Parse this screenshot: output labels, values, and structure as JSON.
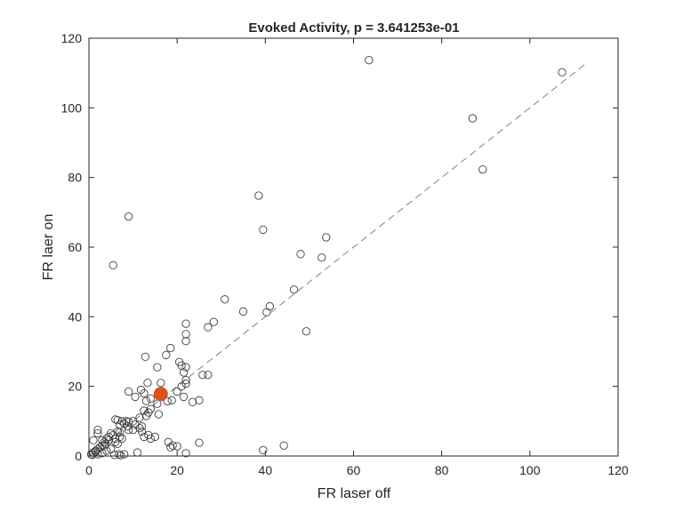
{
  "chart_data": {
    "type": "scatter",
    "title": "Evoked Activity, p = 3.641253e-01",
    "xlabel": "FR laser off",
    "ylabel": "FR laer on",
    "xlim": [
      0,
      120
    ],
    "ylim": [
      0,
      120
    ],
    "xticks": [
      "0",
      "20",
      "40",
      "60",
      "80",
      "100",
      "120"
    ],
    "yticks": [
      "0",
      "20",
      "40",
      "60",
      "80",
      "100",
      "120"
    ],
    "grid": false,
    "box": true,
    "identity_line": {
      "from": [
        0,
        0
      ],
      "to": [
        113,
        113
      ],
      "style": "dashed",
      "color": "#808080"
    },
    "colors": {
      "points": "#404040",
      "highlight": "#d95319",
      "axes": "#262626"
    },
    "highlight_point": {
      "x": 16.3,
      "y": 17.8
    },
    "points": [
      [
        63.5,
        113.7
      ],
      [
        107.3,
        110.2
      ],
      [
        87.0,
        97.0
      ],
      [
        89.3,
        82.3
      ],
      [
        38.5,
        74.8
      ],
      [
        39.5,
        65.0
      ],
      [
        53.8,
        62.8
      ],
      [
        48.0,
        58.0
      ],
      [
        52.8,
        57.0
      ],
      [
        9.0,
        68.8
      ],
      [
        5.5,
        54.8
      ],
      [
        46.5,
        47.8
      ],
      [
        30.8,
        45.0
      ],
      [
        41.0,
        43.0
      ],
      [
        40.3,
        41.3
      ],
      [
        35.0,
        41.5
      ],
      [
        49.3,
        35.8
      ],
      [
        28.3,
        38.5
      ],
      [
        27.0,
        37.0
      ],
      [
        22.0,
        38.0
      ],
      [
        22.0,
        35.0
      ],
      [
        22.0,
        33.0
      ],
      [
        18.5,
        31.0
      ],
      [
        17.5,
        29.0
      ],
      [
        12.8,
        28.5
      ],
      [
        20.5,
        27.0
      ],
      [
        21.0,
        26.0
      ],
      [
        22.0,
        25.5
      ],
      [
        15.5,
        25.5
      ],
      [
        21.5,
        24.0
      ],
      [
        25.8,
        23.3
      ],
      [
        27.0,
        23.3
      ],
      [
        22.0,
        21.8
      ],
      [
        16.3,
        21.0
      ],
      [
        22.0,
        20.8
      ],
      [
        13.3,
        21.0
      ],
      [
        21.0,
        20.0
      ],
      [
        20.0,
        18.5
      ],
      [
        11.8,
        19.0
      ],
      [
        9.0,
        18.5
      ],
      [
        12.5,
        18.0
      ],
      [
        10.5,
        17.0
      ],
      [
        14.0,
        16.5
      ],
      [
        13.0,
        15.8
      ],
      [
        21.5,
        17.0
      ],
      [
        25.0,
        16.0
      ],
      [
        23.5,
        15.5
      ],
      [
        17.8,
        15.7
      ],
      [
        18.8,
        16.0
      ],
      [
        15.5,
        15.0
      ],
      [
        14.0,
        13.5
      ],
      [
        13.5,
        12.5
      ],
      [
        12.5,
        13.0
      ],
      [
        15.8,
        12.0
      ],
      [
        13.0,
        11.5
      ],
      [
        11.5,
        11.0
      ],
      [
        10.0,
        10.0
      ],
      [
        9.0,
        9.8
      ],
      [
        8.5,
        10.0
      ],
      [
        8.0,
        9.3
      ],
      [
        7.5,
        10.0
      ],
      [
        6.5,
        10.3
      ],
      [
        6.0,
        10.5
      ],
      [
        7.0,
        9.0
      ],
      [
        8.8,
        8.5
      ],
      [
        10.5,
        9.0
      ],
      [
        12.0,
        8.5
      ],
      [
        11.5,
        8.0
      ],
      [
        10.0,
        7.5
      ],
      [
        9.0,
        7.5
      ],
      [
        12.0,
        7.0
      ],
      [
        13.5,
        6.0
      ],
      [
        15.0,
        5.5
      ],
      [
        12.5,
        5.5
      ],
      [
        14.0,
        5.0
      ],
      [
        7.0,
        6.8
      ],
      [
        6.5,
        7.0
      ],
      [
        7.0,
        5.5
      ],
      [
        6.0,
        5.0
      ],
      [
        5.5,
        6.0
      ],
      [
        5.0,
        6.5
      ],
      [
        4.5,
        5.5
      ],
      [
        4.0,
        5.0
      ],
      [
        4.5,
        4.5
      ],
      [
        3.5,
        4.0
      ],
      [
        3.0,
        4.5
      ],
      [
        3.8,
        3.5
      ],
      [
        3.5,
        3.0
      ],
      [
        3.0,
        3.0
      ],
      [
        2.5,
        2.5
      ],
      [
        2.0,
        2.0
      ],
      [
        1.5,
        1.5
      ],
      [
        1.0,
        1.0
      ],
      [
        0.5,
        0.5
      ],
      [
        1.0,
        4.5
      ],
      [
        2.0,
        6.5
      ],
      [
        2.0,
        7.5
      ],
      [
        6.5,
        3.5
      ],
      [
        6.0,
        4.0
      ],
      [
        7.5,
        5.0
      ],
      [
        6.8,
        0.5
      ],
      [
        5.8,
        0.3
      ],
      [
        7.2,
        0.2
      ],
      [
        8.0,
        0.5
      ],
      [
        11.0,
        1.0
      ],
      [
        18.0,
        4.0
      ],
      [
        19.0,
        3.0
      ],
      [
        18.5,
        2.5
      ],
      [
        20.0,
        2.8
      ],
      [
        25.0,
        3.8
      ],
      [
        22.0,
        0.8
      ],
      [
        39.5,
        1.7
      ],
      [
        44.2,
        3.0
      ],
      [
        4.0,
        1.5
      ],
      [
        3.0,
        0.8
      ],
      [
        2.0,
        0.5
      ],
      [
        1.5,
        1.2
      ],
      [
        0.8,
        0.3
      ],
      [
        5.0,
        2.0
      ]
    ]
  }
}
